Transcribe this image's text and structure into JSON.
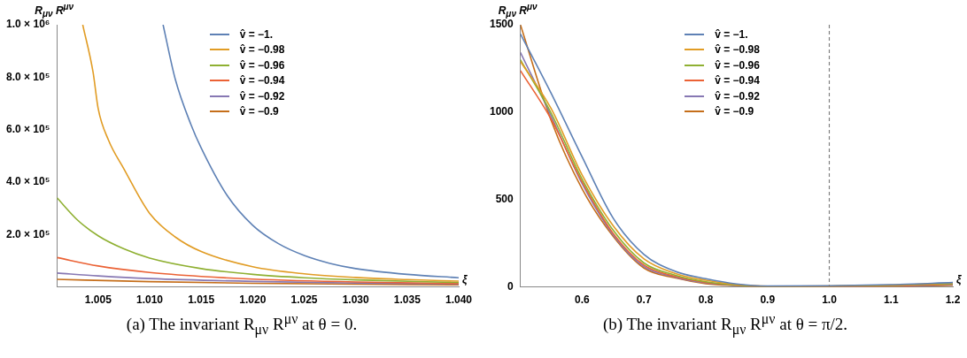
{
  "chart_data": [
    {
      "type": "line",
      "ylabel": "R$_{μν}$ R$^{μν}$",
      "xlabel": "ξ",
      "xlim": [
        1.001,
        1.04
      ],
      "ylim": [
        0,
        1000000
      ],
      "xticks": [
        1.005,
        {
          "value": 1.01,
          "label": "1.010"
        },
        1.015,
        {
          "value": 1.02,
          "label": "1.020"
        },
        1.025,
        {
          "value": 1.03,
          "label": "1.030"
        },
        1.035,
        {
          "value": 1.04,
          "label": "1.040"
        }
      ],
      "yticks": [
        {
          "value": 200000,
          "label": "2.0 × 10⁵"
        },
        {
          "value": 400000,
          "label": "4.0 × 10⁵"
        },
        {
          "value": 600000,
          "label": "6.0 × 10⁵"
        },
        {
          "value": 800000,
          "label": "8.0 × 10⁵"
        },
        {
          "value": 1000000,
          "label": "1.0 × 10⁶"
        }
      ],
      "legend": "top right",
      "grid": false,
      "series": [
        {
          "name": "v̂ = −1.",
          "color": "#5e81b5",
          "x": [
            1.0113,
            1.0125,
            1.014,
            1.015,
            1.0175,
            1.02,
            1.0225,
            1.025,
            1.0275,
            1.03,
            1.035,
            1.04
          ],
          "values": [
            1000000,
            790000,
            620000,
            530000,
            350000,
            235000,
            165000,
            120000,
            90000,
            70000,
            48000,
            35000
          ]
        },
        {
          "name": "v̂ = −0.98",
          "color": "#e19c24",
          "x": [
            1.0035,
            1.0045,
            1.005,
            1.006,
            1.0075,
            1.01,
            1.0125,
            1.015,
            1.02,
            1.025,
            1.03,
            1.035,
            1.04
          ],
          "values": [
            1000000,
            820000,
            680000,
            560000,
            450000,
            280000,
            190000,
            135000,
            77000,
            50000,
            36000,
            28000,
            22000
          ]
        },
        {
          "name": "v̂ = −0.96",
          "color": "#8fb032",
          "x": [
            1.001,
            1.003,
            1.005,
            1.0075,
            1.01,
            1.015,
            1.02,
            1.025,
            1.03,
            1.04
          ],
          "values": [
            340000,
            255000,
            195000,
            145000,
            110000,
            70000,
            48000,
            35000,
            27000,
            17000
          ]
        },
        {
          "name": "v̂ = −0.94",
          "color": "#eb6235",
          "x": [
            1.001,
            1.005,
            1.01,
            1.015,
            1.02,
            1.03,
            1.04
          ],
          "values": [
            112000,
            80000,
            55000,
            40000,
            30000,
            19000,
            13000
          ]
        },
        {
          "name": "v̂ = −0.92",
          "color": "#8778b3",
          "x": [
            1.001,
            1.005,
            1.01,
            1.02,
            1.03,
            1.04
          ],
          "values": [
            53000,
            42000,
            32000,
            21000,
            15000,
            11000
          ]
        },
        {
          "name": "v̂ = −0.9",
          "color": "#c56e1a",
          "x": [
            1.001,
            1.01,
            1.02,
            1.04
          ],
          "values": [
            29000,
            20000,
            14000,
            8000
          ]
        }
      ],
      "annotations": [
        "(a) The invariant R$_{μν}$ R$^{μν}$ at θ = 0."
      ]
    },
    {
      "type": "line",
      "ylabel": "R$_{μν}$ R$^{μν}$",
      "xlabel": "ξ",
      "xlim": [
        0.5,
        1.2
      ],
      "ylim": [
        0,
        1500
      ],
      "xticks": [
        0.6,
        0.7,
        0.8,
        0.9,
        {
          "value": 1,
          "label": "1.0"
        },
        1.1,
        1.2
      ],
      "yticks": [
        0,
        500,
        1000,
        1500
      ],
      "legend": "top right",
      "grid": false,
      "x": [
        0.5,
        0.55,
        0.6,
        0.65,
        0.7,
        0.75,
        0.8,
        0.85,
        0.9,
        1.1,
        1.2
      ],
      "series": [
        {
          "name": "v̂ = −1.",
          "color": "#5e81b5",
          "values": [
            1448,
            1106,
            743,
            394,
            186,
            90,
            47,
            17,
            5,
            13,
            25
          ]
        },
        {
          "name": "v̂ = −0.98",
          "color": "#e19c24",
          "values": [
            1290,
            1019,
            640,
            351,
            160,
            78,
            38,
            13,
            4,
            11,
            22
          ]
        },
        {
          "name": "v̂ = −0.96",
          "color": "#8fb032",
          "values": [
            1300,
            993,
            615,
            325,
            137,
            68,
            30,
            11,
            3,
            9,
            19
          ]
        },
        {
          "name": "v̂ = −0.94",
          "color": "#eb6235",
          "values": [
            1238,
            958,
            600,
            307,
            125,
            61,
            26,
            10,
            3,
            7,
            16
          ]
        },
        {
          "name": "v̂ = −0.92",
          "color": "#8778b3",
          "values": [
            1342,
            976,
            590,
            299,
            116,
            57,
            23,
            9,
            3,
            5,
            13
          ]
        },
        {
          "name": "v̂ = −0.9",
          "color": "#c56e1a",
          "values": [
            1500,
            950,
            560,
            290,
            108,
            52,
            19,
            8,
            2,
            3,
            10
          ]
        }
      ],
      "ref_lines": [
        {
          "axis": "x",
          "value": 1,
          "color": "#808080",
          "line_style": "dashed"
        }
      ],
      "annotations": [
        "(b) The invariant R$_{μν}$ R$^{μν}$ at θ = π/2."
      ]
    }
  ]
}
